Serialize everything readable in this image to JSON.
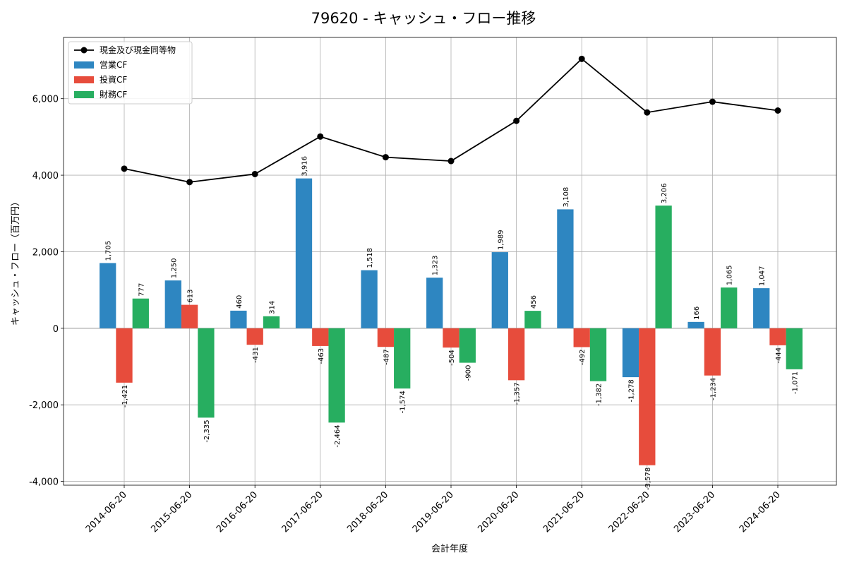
{
  "chart_data": {
    "type": "bar",
    "title": "79620 - キャッシュ・フロー推移",
    "xlabel": "会計年度",
    "ylabel": "キャッシュ・フロー（百万円）",
    "ylim": [
      -4100,
      7600
    ],
    "yticks": [
      -4000,
      -2000,
      0,
      2000,
      4000,
      6000
    ],
    "ytick_labels": [
      "-4,000",
      "-2,000",
      "0",
      "2,000",
      "4,000",
      "6,000"
    ],
    "categories": [
      "2014-06-20",
      "2015-06-20",
      "2016-06-20",
      "2017-06-20",
      "2018-06-20",
      "2019-06-20",
      "2020-06-20",
      "2021-06-20",
      "2022-06-20",
      "2023-06-20",
      "2024-06-20"
    ],
    "series": [
      {
        "name": "営業CF",
        "kind": "bar",
        "color": "#2e86c1",
        "values": [
          1705,
          1250,
          460,
          3916,
          1518,
          1323,
          1989,
          3108,
          -1278,
          166,
          1047
        ],
        "labels": [
          "1,705",
          "1,250",
          "460",
          "3,916",
          "1,518",
          "1,323",
          "1,989",
          "3,108",
          "-1,278",
          "166",
          "1,047"
        ]
      },
      {
        "name": "投資CF",
        "kind": "bar",
        "color": "#e74c3c",
        "values": [
          -1421,
          613,
          -431,
          -463,
          -487,
          -504,
          -1357,
          -492,
          -3578,
          -1234,
          -444
        ],
        "labels": [
          "-1,421",
          "613",
          "-431",
          "-463",
          "-487",
          "-504",
          "-1,357",
          "-492",
          "-3,578",
          "-1,234",
          "-444"
        ]
      },
      {
        "name": "財務CF",
        "kind": "bar",
        "color": "#27ae60",
        "values": [
          777,
          -2335,
          314,
          -2464,
          -1574,
          -900,
          456,
          -1382,
          3206,
          1065,
          -1071
        ],
        "labels": [
          "777",
          "-2,335",
          "314",
          "-2,464",
          "-1,574",
          "-900",
          "456",
          "-1,382",
          "3,206",
          "1,065",
          "-1,071"
        ]
      },
      {
        "name": "現金及び現金同等物",
        "kind": "line",
        "color": "#000000",
        "values": [
          4170,
          3820,
          4030,
          5010,
          4470,
          4370,
          5420,
          7040,
          5640,
          5920,
          5690
        ]
      }
    ],
    "legend": [
      "現金及び現金同等物",
      "営業CF",
      "投資CF",
      "財務CF"
    ],
    "legend_position": "top-left",
    "grid": true
  }
}
